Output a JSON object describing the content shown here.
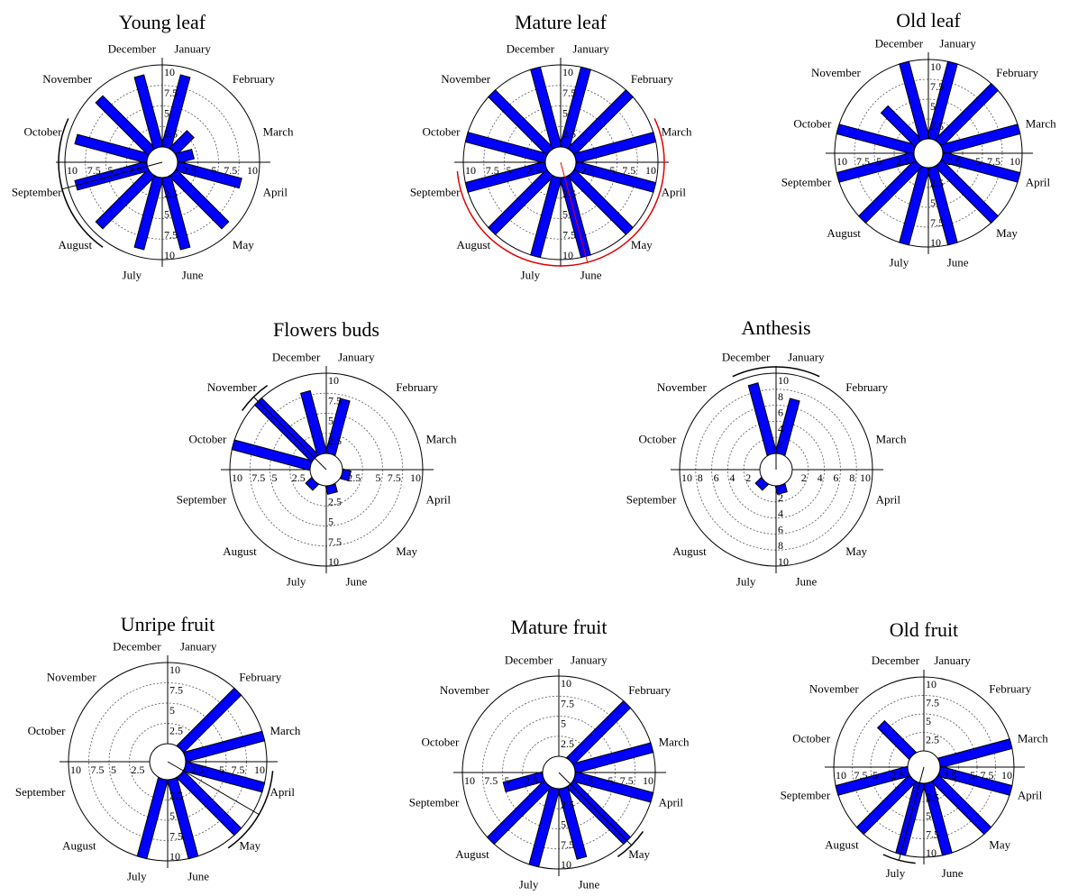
{
  "months": [
    "January",
    "February",
    "March",
    "April",
    "May",
    "June",
    "July",
    "August",
    "September",
    "October",
    "November",
    "December"
  ],
  "colors": {
    "bar": "#0000ff",
    "bar_edge": "#000000",
    "grid": "#555555",
    "arc_black": "#000000",
    "arc_red": "#e00000"
  },
  "chart_data": [
    {
      "type": "polar-bar",
      "title": "Young leaf",
      "months": [
        "January",
        "February",
        "March",
        "April",
        "May",
        "June",
        "July",
        "August",
        "September",
        "October",
        "November",
        "December"
      ],
      "values": [
        9,
        3,
        2,
        8,
        9,
        9,
        9,
        9,
        9,
        9,
        9,
        9
      ],
      "rlim": [
        0,
        10
      ],
      "axis_ticks": [
        "10",
        "7.5",
        "5",
        "2.5",
        "2.5",
        "5",
        "7.5",
        "10"
      ],
      "grid_rings": [
        2.5,
        5,
        7.5
      ],
      "mean_arc": {
        "from_month": "August",
        "to_month": "October",
        "color": "black"
      }
    },
    {
      "type": "polar-bar",
      "title": "Mature leaf",
      "months": [
        "January",
        "February",
        "March",
        "April",
        "May",
        "June",
        "July",
        "August",
        "September",
        "October",
        "November",
        "December"
      ],
      "values": [
        10,
        10,
        10,
        10,
        10,
        10,
        10,
        10,
        10,
        10,
        10,
        10
      ],
      "rlim": [
        0,
        10
      ],
      "axis_ticks": [
        "10",
        "7.5",
        "5",
        "2.5",
        "2.5",
        "5",
        "7.5",
        "10"
      ],
      "grid_rings": [
        2.5,
        5,
        7.5
      ],
      "mean_arc": {
        "from_month": "March",
        "to_month": "September",
        "color": "red"
      }
    },
    {
      "type": "polar-bar",
      "title": "Old leaf",
      "months": [
        "January",
        "February",
        "March",
        "April",
        "May",
        "June",
        "July",
        "August",
        "September",
        "October",
        "November",
        "December"
      ],
      "values": [
        10,
        10,
        10,
        10,
        10,
        10,
        10,
        10,
        10,
        10,
        6,
        10
      ],
      "rlim": [
        0,
        10
      ],
      "axis_ticks": [
        "10",
        "7.5",
        "5",
        "2.5",
        "2.5",
        "5",
        "7.5",
        "10"
      ],
      "grid_rings": [
        2.5,
        5,
        7.5
      ],
      "mean_arc": null
    },
    {
      "type": "polar-bar",
      "title": "Flowers buds",
      "months": [
        "January",
        "February",
        "March",
        "April",
        "May",
        "June",
        "July",
        "August",
        "September",
        "October",
        "November",
        "December"
      ],
      "values": [
        7,
        0,
        0,
        1,
        0,
        1,
        0,
        1,
        0,
        10,
        10,
        8
      ],
      "rlim": [
        0,
        10
      ],
      "axis_ticks": [
        "10",
        "7.5",
        "5",
        "2.5",
        "2.5",
        "5",
        "7.5",
        "10"
      ],
      "grid_rings": [
        2.5,
        5,
        7.5
      ],
      "mean_arc": {
        "from_month": "November",
        "to_month": "November",
        "color": "black"
      }
    },
    {
      "type": "polar-bar",
      "title": "Anthesis",
      "months": [
        "January",
        "February",
        "March",
        "April",
        "May",
        "June",
        "July",
        "August",
        "September",
        "October",
        "November",
        "December"
      ],
      "values": [
        7,
        0,
        0,
        0,
        0,
        1,
        0,
        1,
        0,
        0,
        0,
        9
      ],
      "rlim": [
        0,
        10
      ],
      "axis_ticks": [
        "10",
        "8",
        "6",
        "4",
        "2",
        "2",
        "4",
        "6",
        "8",
        "10"
      ],
      "grid_rings": [
        2,
        4,
        6,
        8
      ],
      "mean_arc": {
        "from_month": "December",
        "to_month": "January",
        "color": "black"
      }
    },
    {
      "type": "polar-bar",
      "title": "Unripe fruit",
      "months": [
        "January",
        "February",
        "March",
        "April",
        "May",
        "June",
        "July",
        "August",
        "September",
        "October",
        "November",
        "December"
      ],
      "values": [
        0,
        10,
        10,
        10,
        10,
        10,
        10,
        0,
        0,
        0,
        0,
        0
      ],
      "rlim": [
        0,
        10
      ],
      "axis_ticks": [
        "10",
        "7.5",
        "5",
        "2.5",
        "2.5",
        "5",
        "7.5",
        "10"
      ],
      "grid_rings": [
        2.5,
        5,
        7.5
      ],
      "mean_arc": {
        "from_month": "April",
        "to_month": "May",
        "color": "black"
      }
    },
    {
      "type": "polar-bar",
      "title": "Mature fruit",
      "months": [
        "January",
        "February",
        "March",
        "April",
        "May",
        "June",
        "July",
        "August",
        "September",
        "October",
        "November",
        "December"
      ],
      "values": [
        0,
        10,
        10,
        10,
        10,
        9,
        10,
        10,
        5,
        0,
        0,
        0
      ],
      "rlim": [
        0,
        10
      ],
      "axis_ticks": [
        "10",
        "7.5",
        "5",
        "2.5",
        "2.5",
        "5",
        "7.5",
        "10"
      ],
      "grid_rings": [
        2.5,
        5,
        7.5
      ],
      "mean_arc": {
        "from_month": "May",
        "to_month": "May",
        "color": "black"
      }
    },
    {
      "type": "polar-bar",
      "title": "Old fruit",
      "months": [
        "January",
        "February",
        "March",
        "April",
        "May",
        "June",
        "July",
        "August",
        "September",
        "October",
        "November",
        "December"
      ],
      "values": [
        0,
        0,
        10,
        10,
        10,
        10,
        10,
        10,
        10,
        0,
        6,
        0
      ],
      "rlim": [
        0,
        10
      ],
      "axis_ticks": [
        "10",
        "7.5",
        "5",
        "2.5",
        "2.5",
        "5",
        "7.5",
        "10"
      ],
      "grid_rings": [
        2.5,
        5,
        7.5
      ],
      "mean_arc": {
        "from_month": "July",
        "to_month": "July",
        "color": "black"
      }
    }
  ]
}
